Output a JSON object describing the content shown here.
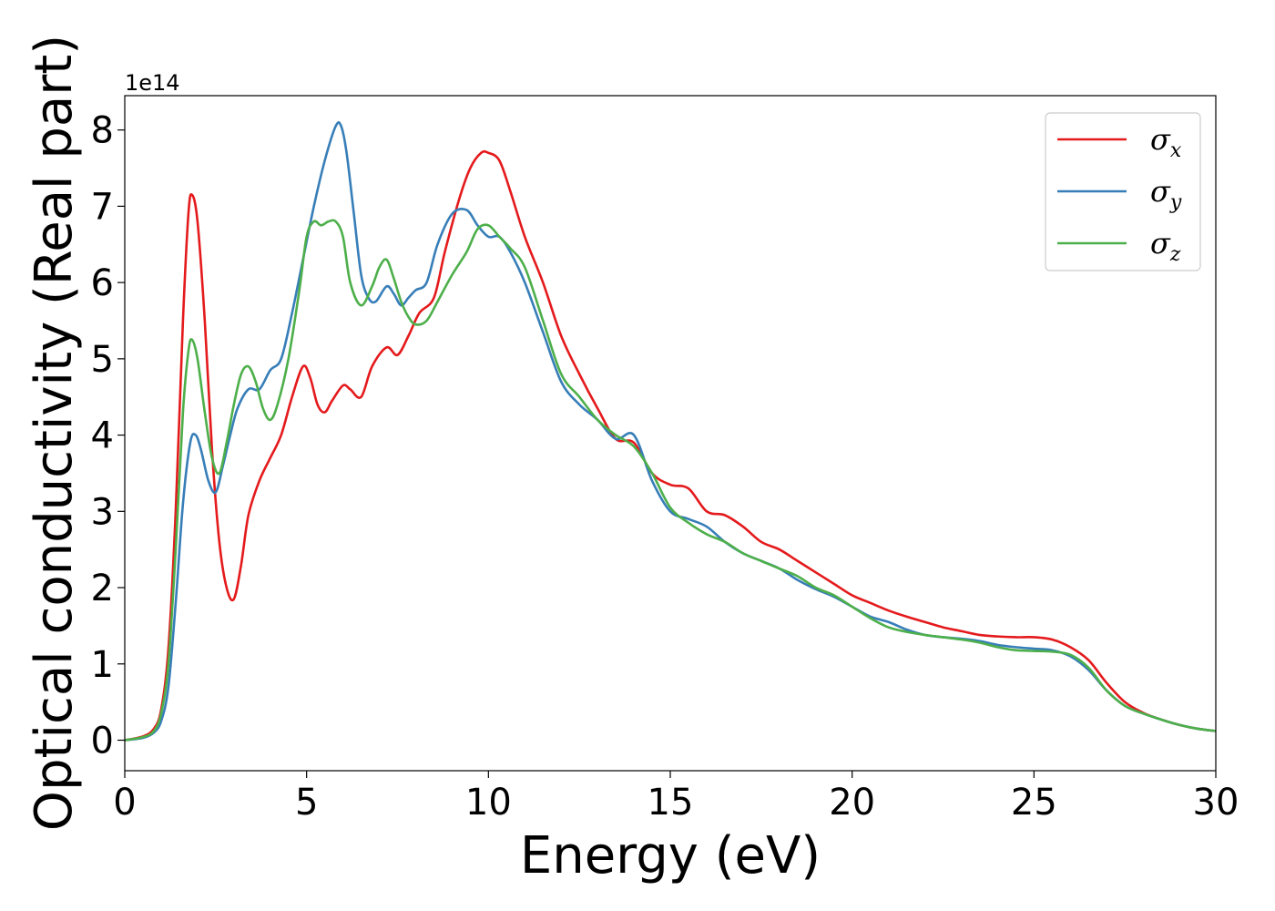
{
  "chart_data": {
    "type": "line",
    "xlabel": "Energy (eV)",
    "ylabel": "Optical conductivity (Real part)",
    "y_offset_label": "1e14",
    "xlim": [
      0,
      30
    ],
    "ylim": [
      -0.4,
      8.45
    ],
    "xticks": [
      0,
      5,
      10,
      15,
      20,
      25,
      30
    ],
    "yticks": [
      0,
      1,
      2,
      3,
      4,
      5,
      6,
      7,
      8
    ],
    "grid": false,
    "legend_position": "top-right",
    "series": [
      {
        "name": "σx",
        "symbol": "σ",
        "subscript": "x",
        "color": "#e41a1c",
        "x": [
          0,
          0.5,
          0.8,
          1.0,
          1.2,
          1.4,
          1.6,
          1.75,
          1.85,
          2.0,
          2.2,
          2.4,
          2.6,
          2.8,
          3.0,
          3.2,
          3.4,
          3.7,
          4.0,
          4.3,
          4.6,
          4.9,
          5.1,
          5.3,
          5.5,
          5.7,
          6.0,
          6.2,
          6.5,
          6.8,
          7.2,
          7.5,
          7.8,
          8.1,
          8.5,
          8.8,
          9.2,
          9.5,
          9.8,
          10.0,
          10.3,
          10.6,
          11.0,
          11.5,
          12.0,
          12.5,
          13.0,
          13.5,
          14.0,
          14.5,
          15.0,
          15.5,
          16.0,
          16.5,
          17.0,
          17.5,
          18.0,
          18.5,
          19.0,
          19.5,
          20.0,
          20.5,
          21.0,
          21.5,
          22.0,
          22.5,
          23.0,
          23.5,
          24.0,
          24.5,
          25.0,
          25.5,
          26.0,
          26.5,
          27.0,
          27.5,
          28.0,
          28.5,
          29.0,
          29.5,
          30.0
        ],
        "y": [
          0.0,
          0.05,
          0.15,
          0.4,
          1.2,
          3.0,
          5.5,
          6.9,
          7.15,
          6.8,
          5.5,
          3.8,
          2.6,
          2.0,
          1.85,
          2.3,
          2.95,
          3.4,
          3.7,
          4.0,
          4.5,
          4.9,
          4.75,
          4.4,
          4.3,
          4.45,
          4.65,
          4.6,
          4.5,
          4.9,
          5.15,
          5.05,
          5.3,
          5.6,
          5.8,
          6.4,
          7.1,
          7.5,
          7.7,
          7.7,
          7.6,
          7.2,
          6.6,
          6.0,
          5.3,
          4.8,
          4.35,
          3.95,
          3.9,
          3.5,
          3.35,
          3.3,
          3.0,
          2.95,
          2.8,
          2.6,
          2.5,
          2.35,
          2.2,
          2.05,
          1.9,
          1.8,
          1.7,
          1.62,
          1.55,
          1.48,
          1.43,
          1.38,
          1.36,
          1.35,
          1.35,
          1.32,
          1.22,
          1.05,
          0.75,
          0.5,
          0.36,
          0.27,
          0.2,
          0.15,
          0.12
        ]
      },
      {
        "name": "σy",
        "symbol": "σ",
        "subscript": "y",
        "color": "#377eb8",
        "x": [
          0,
          0.5,
          0.8,
          1.0,
          1.2,
          1.4,
          1.6,
          1.8,
          1.95,
          2.1,
          2.3,
          2.5,
          2.7,
          2.9,
          3.1,
          3.4,
          3.7,
          4.0,
          4.3,
          4.6,
          4.9,
          5.2,
          5.5,
          5.8,
          5.95,
          6.1,
          6.3,
          6.5,
          6.7,
          6.9,
          7.2,
          7.4,
          7.6,
          7.8,
          8.0,
          8.3,
          8.6,
          9.0,
          9.4,
          9.7,
          10.0,
          10.3,
          10.6,
          11.0,
          11.5,
          12.0,
          12.5,
          13.0,
          13.5,
          14.0,
          14.5,
          15.0,
          15.5,
          16.0,
          16.5,
          17.0,
          17.5,
          18.0,
          18.5,
          19.0,
          19.5,
          20.0,
          20.5,
          21.0,
          21.5,
          22.0,
          22.5,
          23.0,
          23.5,
          24.0,
          24.5,
          25.0,
          25.5,
          26.0,
          26.5,
          27.0,
          27.5,
          28.0,
          28.5,
          29.0,
          29.5,
          30.0
        ],
        "y": [
          0.0,
          0.03,
          0.1,
          0.25,
          0.7,
          1.8,
          3.1,
          3.9,
          4.0,
          3.8,
          3.4,
          3.25,
          3.6,
          4.0,
          4.35,
          4.6,
          4.6,
          4.85,
          5.0,
          5.6,
          6.3,
          7.0,
          7.6,
          8.05,
          8.05,
          7.7,
          6.9,
          6.1,
          5.8,
          5.75,
          5.95,
          5.85,
          5.7,
          5.8,
          5.9,
          6.0,
          6.5,
          6.9,
          6.95,
          6.75,
          6.6,
          6.6,
          6.4,
          6.0,
          5.35,
          4.7,
          4.4,
          4.2,
          3.95,
          4.0,
          3.4,
          3.0,
          2.9,
          2.8,
          2.6,
          2.45,
          2.35,
          2.25,
          2.1,
          1.98,
          1.88,
          1.75,
          1.62,
          1.55,
          1.45,
          1.38,
          1.35,
          1.33,
          1.3,
          1.25,
          1.22,
          1.2,
          1.18,
          1.1,
          0.92,
          0.65,
          0.45,
          0.35,
          0.27,
          0.2,
          0.15,
          0.12
        ]
      },
      {
        "name": "σz",
        "symbol": "σ",
        "subscript": "z",
        "color": "#4daf4a",
        "x": [
          0,
          0.5,
          0.8,
          1.0,
          1.2,
          1.4,
          1.6,
          1.75,
          1.85,
          2.0,
          2.2,
          2.4,
          2.6,
          2.8,
          3.0,
          3.2,
          3.4,
          3.6,
          3.8,
          4.0,
          4.2,
          4.5,
          4.8,
          5.0,
          5.2,
          5.4,
          5.6,
          5.8,
          6.0,
          6.2,
          6.5,
          6.8,
          7.0,
          7.2,
          7.4,
          7.6,
          7.8,
          8.0,
          8.3,
          8.6,
          9.0,
          9.4,
          9.7,
          10.0,
          10.3,
          10.6,
          11.0,
          11.5,
          12.0,
          12.5,
          13.0,
          13.5,
          14.0,
          14.5,
          15.0,
          15.5,
          16.0,
          16.5,
          17.0,
          17.5,
          18.0,
          18.5,
          19.0,
          19.5,
          20.0,
          20.5,
          21.0,
          21.5,
          22.0,
          22.5,
          23.0,
          23.5,
          24.0,
          24.5,
          25.0,
          25.5,
          26.0,
          26.5,
          27.0,
          27.5,
          28.0,
          28.5,
          29.0,
          29.5,
          30.0
        ],
        "y": [
          0.0,
          0.04,
          0.12,
          0.35,
          1.0,
          2.5,
          4.3,
          5.1,
          5.25,
          5.0,
          4.3,
          3.7,
          3.5,
          3.9,
          4.4,
          4.8,
          4.9,
          4.7,
          4.35,
          4.2,
          4.4,
          5.0,
          5.9,
          6.6,
          6.8,
          6.75,
          6.8,
          6.8,
          6.6,
          6.0,
          5.7,
          5.95,
          6.2,
          6.3,
          6.05,
          5.75,
          5.55,
          5.45,
          5.5,
          5.75,
          6.1,
          6.4,
          6.7,
          6.75,
          6.6,
          6.45,
          6.2,
          5.5,
          4.8,
          4.5,
          4.2,
          4.0,
          3.85,
          3.5,
          3.05,
          2.85,
          2.7,
          2.6,
          2.45,
          2.35,
          2.25,
          2.15,
          2.0,
          1.9,
          1.75,
          1.6,
          1.48,
          1.42,
          1.38,
          1.35,
          1.32,
          1.28,
          1.22,
          1.18,
          1.17,
          1.16,
          1.12,
          0.95,
          0.65,
          0.45,
          0.35,
          0.27,
          0.2,
          0.15,
          0.12
        ]
      }
    ]
  }
}
